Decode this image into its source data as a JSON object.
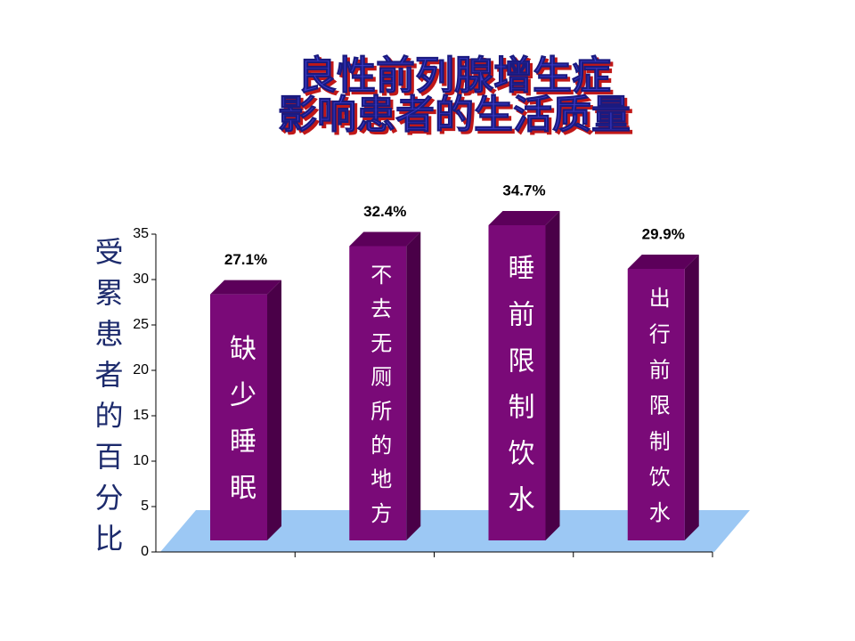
{
  "chart_data": {
    "type": "bar",
    "title": [
      "良性前列腺增生症",
      "影响患者的生活质量"
    ],
    "y_label": "受累患者的百分比",
    "categories": [
      "缺少睡眠",
      "不去无厕所的地方",
      "睡前限制饮水",
      "出行前限制饮水"
    ],
    "values": [
      27.1,
      32.4,
      34.7,
      29.9
    ],
    "value_labels": [
      "27.1%",
      "32.4%",
      "34.7%",
      "29.9%"
    ],
    "color": "#7a0a78",
    "ylim": [
      0,
      35
    ],
    "yticks": [
      0,
      5,
      10,
      15,
      20,
      25,
      30,
      35
    ]
  }
}
